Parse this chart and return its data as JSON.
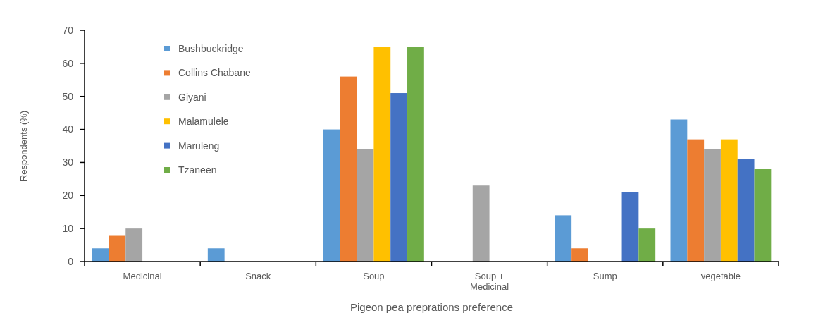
{
  "chart_data": {
    "type": "bar",
    "xlabel": "Pigeon pea preprations  preference",
    "ylabel": "Respondents (%)",
    "categories": [
      "Medicinal",
      "Snack",
      "Soup",
      "Soup + Medicinal",
      "Sump",
      "vegetable"
    ],
    "series": [
      {
        "name": "Bushbuckridge",
        "color": "#5b9bd5",
        "values": [
          4,
          4,
          40,
          0,
          14,
          43
        ]
      },
      {
        "name": "Collins Chabane",
        "color": "#ed7d31",
        "values": [
          8,
          0,
          56,
          0,
          4,
          37
        ]
      },
      {
        "name": "Giyani",
        "color": "#a5a5a5",
        "values": [
          10,
          0,
          34,
          23,
          0,
          34
        ]
      },
      {
        "name": "Malamulele",
        "color": "#ffc000",
        "values": [
          0,
          0,
          65,
          0,
          0,
          37
        ]
      },
      {
        "name": "Maruleng",
        "color": "#4472c4",
        "values": [
          0,
          0,
          51,
          0,
          21,
          31
        ]
      },
      {
        "name": "Tzaneen",
        "color": "#70ad47",
        "values": [
          0,
          0,
          65,
          0,
          10,
          28
        ]
      }
    ],
    "ylim": [
      0,
      70
    ],
    "yticks": [
      0,
      10,
      20,
      30,
      40,
      50,
      60,
      70
    ],
    "legend": "top left"
  }
}
